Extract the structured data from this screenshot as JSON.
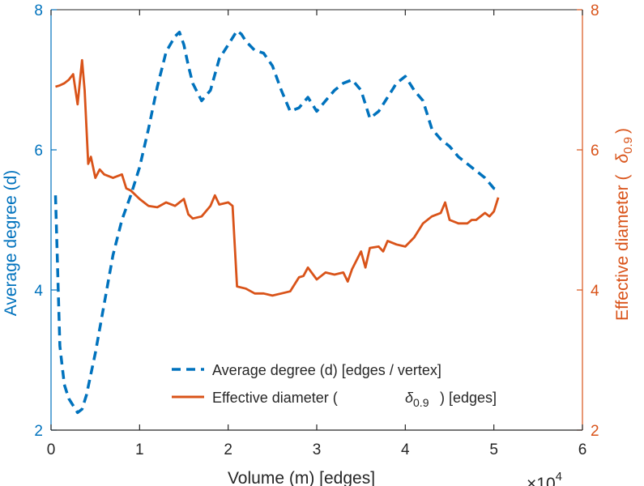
{
  "chart_data": {
    "type": "line",
    "xlabel": "Volume (m) [edges]",
    "x_exponent_label": "×10",
    "x_exponent_power": "4",
    "xlim": [
      0,
      6
    ],
    "x_ticks": [
      0,
      1,
      2,
      3,
      4,
      5,
      6
    ],
    "ylabel_left": "Average degree (d)",
    "ylim_left": [
      2,
      8
    ],
    "y_ticks_left": [
      2,
      4,
      6,
      8
    ],
    "ylabel_right_prefix": "Effective diameter (",
    "ylabel_right_symbol": "δ",
    "ylabel_right_subscript": "0.9",
    "ylabel_right_suffix": ")",
    "ylim_right": [
      2,
      8
    ],
    "y_ticks_right": [
      2,
      4,
      6,
      8
    ],
    "grid": false,
    "legend_position": "bottom-center",
    "colors": {
      "left": "#0072BD",
      "right": "#D95319"
    },
    "series": [
      {
        "name": "Average degree (d) [edges / vertex]",
        "axis": "left",
        "style": "dashed",
        "x": [
          0.05,
          0.1,
          0.15,
          0.2,
          0.25,
          0.3,
          0.35,
          0.4,
          0.5,
          0.6,
          0.7,
          0.8,
          0.9,
          1.0,
          1.1,
          1.2,
          1.3,
          1.4,
          1.45,
          1.5,
          1.55,
          1.6,
          1.7,
          1.8,
          1.9,
          2.0,
          2.1,
          2.15,
          2.2,
          2.3,
          2.4,
          2.5,
          2.6,
          2.7,
          2.8,
          2.9,
          3.0,
          3.1,
          3.2,
          3.3,
          3.4,
          3.5,
          3.6,
          3.7,
          3.8,
          3.9,
          4.0,
          4.1,
          4.2,
          4.3,
          4.4,
          4.5,
          4.6,
          4.7,
          4.8,
          4.9,
          5.0,
          5.05
        ],
        "values": [
          5.35,
          3.2,
          2.65,
          2.45,
          2.35,
          2.25,
          2.3,
          2.5,
          3.1,
          3.8,
          4.5,
          5.0,
          5.35,
          5.75,
          6.3,
          6.9,
          7.4,
          7.62,
          7.68,
          7.5,
          7.2,
          6.95,
          6.7,
          6.85,
          7.3,
          7.5,
          7.7,
          7.65,
          7.55,
          7.42,
          7.38,
          7.2,
          6.85,
          6.55,
          6.6,
          6.75,
          6.55,
          6.7,
          6.85,
          6.95,
          7.0,
          6.85,
          6.45,
          6.55,
          6.75,
          6.95,
          7.05,
          6.85,
          6.7,
          6.3,
          6.15,
          6.05,
          5.9,
          5.8,
          5.7,
          5.6,
          5.45,
          5.42
        ]
      },
      {
        "name": "Effective diameter (δ0.9) [edges]",
        "axis": "right",
        "style": "solid",
        "x": [
          0.05,
          0.1,
          0.15,
          0.2,
          0.25,
          0.3,
          0.35,
          0.38,
          0.42,
          0.45,
          0.5,
          0.55,
          0.6,
          0.7,
          0.8,
          0.85,
          0.9,
          1.0,
          1.1,
          1.2,
          1.3,
          1.4,
          1.5,
          1.55,
          1.6,
          1.7,
          1.8,
          1.85,
          1.9,
          2.0,
          2.05,
          2.1,
          2.2,
          2.3,
          2.4,
          2.5,
          2.6,
          2.7,
          2.8,
          2.85,
          2.9,
          3.0,
          3.05,
          3.1,
          3.2,
          3.3,
          3.35,
          3.4,
          3.5,
          3.55,
          3.6,
          3.7,
          3.75,
          3.8,
          3.9,
          4.0,
          4.1,
          4.2,
          4.3,
          4.4,
          4.45,
          4.5,
          4.6,
          4.7,
          4.75,
          4.8,
          4.9,
          4.95,
          5.0,
          5.05
        ],
        "values": [
          6.9,
          6.92,
          6.95,
          7.0,
          7.08,
          6.65,
          7.28,
          6.85,
          5.8,
          5.9,
          5.6,
          5.72,
          5.65,
          5.6,
          5.65,
          5.45,
          5.42,
          5.3,
          5.2,
          5.18,
          5.25,
          5.2,
          5.3,
          5.08,
          5.02,
          5.05,
          5.2,
          5.35,
          5.22,
          5.25,
          5.2,
          4.05,
          4.02,
          3.95,
          3.95,
          3.92,
          3.95,
          3.98,
          4.18,
          4.2,
          4.32,
          4.15,
          4.2,
          4.25,
          4.22,
          4.25,
          4.12,
          4.3,
          4.55,
          4.32,
          4.6,
          4.62,
          4.55,
          4.7,
          4.65,
          4.62,
          4.75,
          4.95,
          5.05,
          5.1,
          5.25,
          5.0,
          4.95,
          4.95,
          5.0,
          5.0,
          5.1,
          5.05,
          5.12,
          5.32
        ]
      }
    ]
  }
}
